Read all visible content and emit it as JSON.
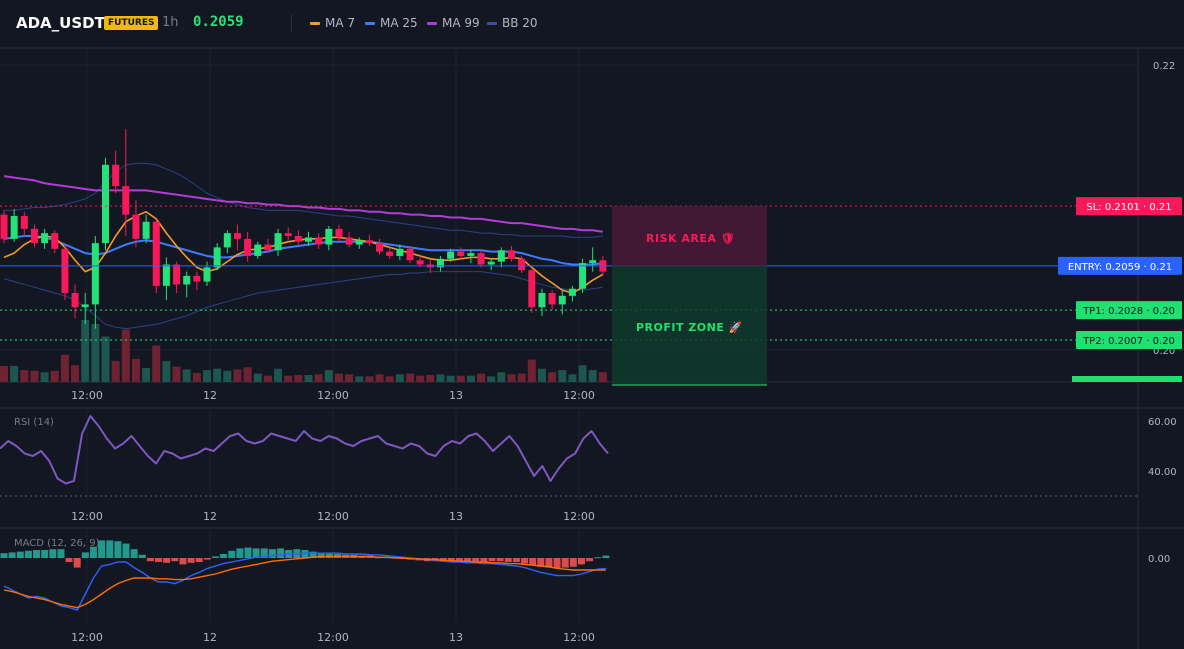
{
  "header": {
    "symbol": "ADA_USDT",
    "badge": "FUTURES",
    "timeframe": "1h",
    "price": "0.2059",
    "legend": [
      {
        "label": "MA 7",
        "color": "#f59a23"
      },
      {
        "label": "MA 25",
        "color": "#3d7bfd"
      },
      {
        "label": "MA 99",
        "color": "#b03dd6"
      },
      {
        "label": "BB 20",
        "color": "#2c3f8c"
      }
    ]
  },
  "price_axis": {
    "ticks": [
      {
        "value": 0.22,
        "label": "0.22"
      },
      {
        "value": 0.2,
        "label": "0.20"
      }
    ]
  },
  "time_axis": {
    "labels": [
      "12:00",
      "12",
      "12:00",
      "13",
      "12:00"
    ]
  },
  "levels": [
    {
      "key": "sl",
      "text": "SL: 0.2101 · 0.21",
      "value": 0.2101,
      "color": "#f7195a",
      "line": "dotted"
    },
    {
      "key": "entry",
      "text": "ENTRY: 0.2059 · 0.21",
      "value": 0.2059,
      "color": "#2962ff",
      "line": "solid"
    },
    {
      "key": "tp1",
      "text": "TP1: 0.2028 · 0.20",
      "value": 0.2028,
      "color": "#20e070",
      "line": "dotted"
    },
    {
      "key": "tp2",
      "text": "TP2: 0.2007 · 0.20",
      "value": 0.2007,
      "color": "#20e070",
      "line": "dotted"
    }
  ],
  "zones": {
    "risk_label": "RISK AREA 🛡",
    "profit_label": "PROFIT ZONE 🚀"
  },
  "rsi": {
    "title": "RSI (14)",
    "ticks": [
      "60.00",
      "40.00"
    ],
    "tick_values": [
      60,
      40
    ],
    "lower_band": 30,
    "values": [
      49,
      52,
      50,
      47,
      46,
      48,
      44,
      37,
      35,
      36,
      55,
      62,
      58,
      53,
      49,
      51,
      54,
      50,
      46,
      43,
      48,
      47,
      45,
      46,
      47,
      49,
      48,
      51,
      54,
      55,
      52,
      51,
      52,
      55,
      54,
      53,
      52,
      56,
      53,
      52,
      54,
      53,
      51,
      50,
      52,
      53,
      54,
      51,
      50,
      49,
      51,
      50,
      47,
      46,
      50,
      52,
      51,
      54,
      55,
      52,
      48,
      51,
      54,
      50,
      44,
      38,
      42,
      36,
      41,
      45,
      47,
      53,
      56,
      51,
      47
    ]
  },
  "macd": {
    "title": "MACD (12, 26, 9)",
    "tick": "0.00",
    "histogram": [
      0.0006,
      0.0007,
      0.0008,
      0.0009,
      0.001,
      0.001,
      0.0011,
      0.0011,
      -0.0005,
      -0.0012,
      0.0007,
      0.0014,
      0.0022,
      0.0022,
      0.0021,
      0.0018,
      0.0011,
      0.0004,
      -0.0004,
      -0.0005,
      -0.0006,
      -0.0004,
      -0.0008,
      -0.0006,
      -0.0005,
      -0.0002,
      0.0002,
      0.0005,
      0.0009,
      0.0012,
      0.0013,
      0.0012,
      0.0012,
      0.0011,
      0.0012,
      0.001,
      0.0011,
      0.001,
      0.0008,
      0.0006,
      0.0006,
      0.0005,
      0.0004,
      0.0004,
      0.0003,
      0.0003,
      0.0001,
      0.0001,
      0.0001,
      -0.0001,
      -0.0002,
      -0.0003,
      -0.0004,
      -0.0004,
      -0.0004,
      -0.0005,
      -0.0004,
      -0.0005,
      -0.0004,
      -0.0005,
      -0.0004,
      -0.0004,
      -0.0005,
      -0.0005,
      -0.0007,
      -0.0009,
      -0.0011,
      -0.0012,
      -0.0013,
      -0.0012,
      -0.0011,
      -0.0008,
      -0.0004,
      0.0001,
      0.0003
    ],
    "macd_line": [
      -0.0035,
      -0.004,
      -0.0045,
      -0.005,
      -0.0048,
      -0.005,
      -0.0055,
      -0.006,
      -0.0062,
      -0.0065,
      -0.0045,
      -0.0025,
      -0.001,
      -0.0008,
      -0.0005,
      -0.0005,
      -0.0012,
      -0.0018,
      -0.0025,
      -0.003,
      -0.003,
      -0.0032,
      -0.0028,
      -0.0022,
      -0.0018,
      -0.0013,
      -0.001,
      -0.0007,
      -0.0005,
      -0.0003,
      -0.0001,
      0.0001,
      0.0002,
      0.0003,
      0.0004,
      0.0005,
      0.0005,
      0.0006,
      0.0006,
      0.0006,
      0.0006,
      0.0006,
      0.0005,
      0.0005,
      0.0005,
      0.0004,
      0.0004,
      0.0003,
      0.0002,
      0.0001,
      0,
      -0.0001,
      -0.0002,
      -0.0003,
      -0.0004,
      -0.0005,
      -0.0005,
      -0.0006,
      -0.0006,
      -0.0007,
      -0.0007,
      -0.0008,
      -0.0009,
      -0.001,
      -0.0012,
      -0.0015,
      -0.0018,
      -0.002,
      -0.0022,
      -0.0022,
      -0.0022,
      -0.002,
      -0.0017,
      -0.0014,
      -0.0013
    ],
    "signal_line": [
      -0.004,
      -0.0042,
      -0.0045,
      -0.0048,
      -0.005,
      -0.0052,
      -0.0055,
      -0.0058,
      -0.006,
      -0.0062,
      -0.0058,
      -0.0052,
      -0.0045,
      -0.0038,
      -0.0032,
      -0.0028,
      -0.0025,
      -0.0025,
      -0.0025,
      -0.0026,
      -0.0026,
      -0.0027,
      -0.0027,
      -0.0026,
      -0.0024,
      -0.0022,
      -0.002,
      -0.0017,
      -0.0014,
      -0.0012,
      -0.001,
      -0.0008,
      -0.0006,
      -0.0004,
      -0.0003,
      -0.0002,
      -0.0001,
      0,
      0.0001,
      0.0002,
      0.0002,
      0.0002,
      0.0002,
      0.0002,
      0.0002,
      0.0002,
      0.0001,
      0.0001,
      0,
      0,
      -0.0001,
      -0.0001,
      -0.0002,
      -0.0002,
      -0.0003,
      -0.0003,
      -0.0004,
      -0.0004,
      -0.0005,
      -0.0005,
      -0.0006,
      -0.0006,
      -0.0007,
      -0.0007,
      -0.0008,
      -0.0009,
      -0.001,
      -0.0011,
      -0.0013,
      -0.0014,
      -0.0015,
      -0.0015,
      -0.0015,
      -0.0015,
      -0.0015
    ]
  },
  "candles": [
    [
      0.2095,
      0.2098,
      0.2075,
      0.2078
    ],
    [
      0.2078,
      0.2099,
      0.2076,
      0.2094
    ],
    [
      0.2094,
      0.2097,
      0.208,
      0.2085
    ],
    [
      0.2085,
      0.2088,
      0.2072,
      0.2075
    ],
    [
      0.2075,
      0.2085,
      0.2071,
      0.2082
    ],
    [
      0.2082,
      0.2084,
      0.2068,
      0.2071
    ],
    [
      0.2071,
      0.2074,
      0.2035,
      0.204
    ],
    [
      0.204,
      0.2046,
      0.2022,
      0.203
    ],
    [
      0.203,
      0.204,
      0.2018,
      0.2032
    ],
    [
      0.2032,
      0.208,
      0.2015,
      0.2075
    ],
    [
      0.2075,
      0.2135,
      0.207,
      0.213
    ],
    [
      0.213,
      0.214,
      0.211,
      0.2115
    ],
    [
      0.2115,
      0.2155,
      0.208,
      0.2095
    ],
    [
      0.2095,
      0.2105,
      0.2072,
      0.2078
    ],
    [
      0.2078,
      0.2095,
      0.2075,
      0.209
    ],
    [
      0.209,
      0.2092,
      0.204,
      0.2045
    ],
    [
      0.2045,
      0.2065,
      0.2035,
      0.206
    ],
    [
      0.206,
      0.2062,
      0.204,
      0.2046
    ],
    [
      0.2046,
      0.2055,
      0.2037,
      0.2052
    ],
    [
      0.2052,
      0.2055,
      0.2042,
      0.2048
    ],
    [
      0.2048,
      0.2062,
      0.2045,
      0.2058
    ],
    [
      0.2058,
      0.2075,
      0.2056,
      0.2072
    ],
    [
      0.2072,
      0.2084,
      0.2068,
      0.2082
    ],
    [
      0.2082,
      0.2088,
      0.207,
      0.2078
    ],
    [
      0.2078,
      0.2083,
      0.2062,
      0.2066
    ],
    [
      0.2066,
      0.2076,
      0.2064,
      0.2074
    ],
    [
      0.2074,
      0.2078,
      0.2069,
      0.207
    ],
    [
      0.207,
      0.2085,
      0.2066,
      0.2082
    ],
    [
      0.2082,
      0.2086,
      0.2077,
      0.208
    ],
    [
      0.208,
      0.2084,
      0.2074,
      0.2076
    ],
    [
      0.2076,
      0.2083,
      0.2073,
      0.2079
    ],
    [
      0.2079,
      0.2082,
      0.2071,
      0.2074
    ],
    [
      0.2074,
      0.2087,
      0.207,
      0.2085
    ],
    [
      0.2085,
      0.2088,
      0.2076,
      0.2079
    ],
    [
      0.2079,
      0.2083,
      0.2072,
      0.2074
    ],
    [
      0.2074,
      0.2079,
      0.2071,
      0.2077
    ],
    [
      0.2077,
      0.2081,
      0.2073,
      0.2075
    ],
    [
      0.2075,
      0.2078,
      0.2067,
      0.2069
    ],
    [
      0.2069,
      0.2072,
      0.2064,
      0.2066
    ],
    [
      0.2066,
      0.2074,
      0.2063,
      0.2071
    ],
    [
      0.2071,
      0.2073,
      0.2061,
      0.2063
    ],
    [
      0.2063,
      0.2067,
      0.2058,
      0.206
    ],
    [
      0.206,
      0.2064,
      0.2054,
      0.2058
    ],
    [
      0.2058,
      0.2066,
      0.2055,
      0.2064
    ],
    [
      0.2064,
      0.2071,
      0.2062,
      0.2069
    ],
    [
      0.2069,
      0.2072,
      0.2063,
      0.2066
    ],
    [
      0.2066,
      0.207,
      0.2061,
      0.2068
    ],
    [
      0.2068,
      0.207,
      0.2058,
      0.206
    ],
    [
      0.206,
      0.2064,
      0.2056,
      0.2062
    ],
    [
      0.2062,
      0.2072,
      0.2058,
      0.207
    ],
    [
      0.207,
      0.2073,
      0.2062,
      0.2064
    ],
    [
      0.2064,
      0.2066,
      0.2054,
      0.2056
    ],
    [
      0.2056,
      0.2058,
      0.2026,
      0.203
    ],
    [
      0.203,
      0.2043,
      0.2024,
      0.204
    ],
    [
      0.204,
      0.2042,
      0.2028,
      0.2032
    ],
    [
      0.2032,
      0.2042,
      0.2025,
      0.2038
    ],
    [
      0.2038,
      0.2045,
      0.2034,
      0.2043
    ],
    [
      0.2043,
      0.2064,
      0.204,
      0.2061
    ],
    [
      0.2061,
      0.2072,
      0.2055,
      0.2063
    ],
    [
      0.2063,
      0.2066,
      0.2052,
      0.2055
    ]
  ],
  "ma7": [
    0.2065,
    0.2068,
    0.2074,
    0.2078,
    0.208,
    0.2079,
    0.2072,
    0.2063,
    0.2055,
    0.2058,
    0.2068,
    0.208,
    0.209,
    0.2094,
    0.2097,
    0.2092,
    0.2082,
    0.2073,
    0.2065,
    0.2058,
    0.2055,
    0.2057,
    0.2062,
    0.2067,
    0.207,
    0.2071,
    0.2072,
    0.2074,
    0.2076,
    0.2077,
    0.2078,
    0.2078,
    0.2079,
    0.2079,
    0.2078,
    0.2077,
    0.2076,
    0.2074,
    0.2072,
    0.207,
    0.2068,
    0.2066,
    0.2064,
    0.2063,
    0.2063,
    0.2064,
    0.2065,
    0.2065,
    0.2064,
    0.2064,
    0.2065,
    0.2064,
    0.2058,
    0.2052,
    0.2047,
    0.2042,
    0.204,
    0.2044,
    0.2049,
    0.2053
  ],
  "ma25": [
    0.2078,
    0.2079,
    0.208,
    0.208,
    0.2079,
    0.2077,
    0.2074,
    0.2071,
    0.2068,
    0.2067,
    0.2068,
    0.2071,
    0.2074,
    0.2076,
    0.2077,
    0.2076,
    0.2074,
    0.2072,
    0.207,
    0.2068,
    0.2066,
    0.2065,
    0.2065,
    0.2066,
    0.2067,
    0.2068,
    0.2069,
    0.2071,
    0.2072,
    0.2073,
    0.2074,
    0.2075,
    0.2076,
    0.2076,
    0.2076,
    0.2076,
    0.2076,
    0.2075,
    0.2074,
    0.2073,
    0.2072,
    0.2071,
    0.207,
    0.207,
    0.207,
    0.207,
    0.207,
    0.207,
    0.2069,
    0.2069,
    0.2069,
    0.2068,
    0.2066,
    0.2064,
    0.2063,
    0.2061,
    0.206,
    0.206,
    0.206,
    0.2061
  ],
  "ma99": [
    0.2122,
    0.2121,
    0.212,
    0.2119,
    0.2117,
    0.2116,
    0.2115,
    0.2114,
    0.2113,
    0.2112,
    0.2112,
    0.2112,
    0.2112,
    0.2112,
    0.2112,
    0.2111,
    0.211,
    0.2109,
    0.2108,
    0.2107,
    0.2106,
    0.2105,
    0.2104,
    0.2104,
    0.2103,
    0.2103,
    0.2102,
    0.2102,
    0.2101,
    0.2101,
    0.21,
    0.21,
    0.2099,
    0.2099,
    0.2098,
    0.2098,
    0.2097,
    0.2097,
    0.2096,
    0.2096,
    0.2095,
    0.2095,
    0.2094,
    0.2094,
    0.2093,
    0.2093,
    0.2092,
    0.2092,
    0.2091,
    0.209,
    0.2089,
    0.2089,
    0.2088,
    0.2087,
    0.2086,
    0.2085,
    0.2085,
    0.2084,
    0.2084,
    0.2083
  ],
  "bb_upper": [
    0.2098,
    0.2098,
    0.2099,
    0.21,
    0.21,
    0.2101,
    0.2102,
    0.2104,
    0.2106,
    0.211,
    0.2118,
    0.2125,
    0.213,
    0.2131,
    0.2131,
    0.213,
    0.2127,
    0.2124,
    0.212,
    0.2115,
    0.211,
    0.2107,
    0.2104,
    0.2102,
    0.21,
    0.2099,
    0.2098,
    0.2098,
    0.2098,
    0.2098,
    0.2097,
    0.2096,
    0.2095,
    0.2094,
    0.2094,
    0.2093,
    0.2092,
    0.2091,
    0.209,
    0.2089,
    0.2088,
    0.2087,
    0.2086,
    0.2085,
    0.2084,
    0.2084,
    0.2083,
    0.2082,
    0.2082,
    0.2081,
    0.2081,
    0.208,
    0.208,
    0.208,
    0.208,
    0.208,
    0.2079,
    0.2079,
    0.2079,
    0.208
  ],
  "bb_lower": [
    0.205,
    0.2048,
    0.2046,
    0.2044,
    0.2042,
    0.204,
    0.2038,
    0.2035,
    0.203,
    0.2024,
    0.2018,
    0.2016,
    0.2015,
    0.2016,
    0.2017,
    0.2018,
    0.202,
    0.2022,
    0.2024,
    0.2027,
    0.203,
    0.2032,
    0.2034,
    0.2036,
    0.2038,
    0.204,
    0.2041,
    0.2042,
    0.2043,
    0.2044,
    0.2045,
    0.2046,
    0.2047,
    0.2048,
    0.2049,
    0.205,
    0.2051,
    0.2052,
    0.2053,
    0.2053,
    0.2054,
    0.2054,
    0.2055,
    0.2055,
    0.2055,
    0.2055,
    0.2055,
    0.2055,
    0.2054,
    0.2053,
    0.2052,
    0.205,
    0.2048,
    0.2046,
    0.2044,
    0.2043,
    0.2042,
    0.2042,
    0.2043,
    0.2044
  ]
}
